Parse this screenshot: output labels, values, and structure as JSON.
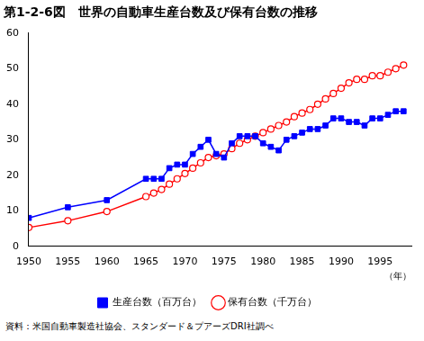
{
  "chart_data": {
    "type": "line",
    "title": "第1-2-6図　世界の自動車生産台数及び保有台数の推移",
    "xlabel": "（年）",
    "source": "資料：米国自動車製造社協会、スタンダード＆プアーズDRI社調べ",
    "x": [
      1950,
      1955,
      1960,
      1965,
      1966,
      1967,
      1968,
      1969,
      1970,
      1971,
      1972,
      1973,
      1974,
      1975,
      1976,
      1977,
      1978,
      1979,
      1980,
      1981,
      1982,
      1983,
      1984,
      1985,
      1986,
      1987,
      1988,
      1989,
      1990,
      1991,
      1992,
      1993,
      1994,
      1995,
      1996,
      1997,
      1998
    ],
    "series": [
      {
        "name": "生産台数（百万台）",
        "color": "#0000ff",
        "marker": "square",
        "values": [
          8,
          11,
          13,
          19,
          19,
          19,
          22,
          23,
          23,
          26,
          28,
          30,
          26,
          25,
          29,
          31,
          31,
          31,
          29,
          28,
          27,
          30,
          31,
          32,
          33,
          33,
          34,
          36,
          36,
          35,
          35,
          34,
          36,
          36,
          37,
          38,
          38
        ]
      },
      {
        "name": "保有台数（千万台）",
        "color": "#ff0000",
        "marker": "open_circle",
        "values": [
          5.3,
          7.2,
          9.8,
          14,
          15,
          16,
          17.5,
          19,
          20.5,
          22,
          23.5,
          25,
          25.5,
          26,
          27.5,
          29,
          30,
          31,
          32,
          33,
          34,
          35,
          36.5,
          37.5,
          38.5,
          40,
          41.5,
          43,
          44.5,
          46,
          47,
          47,
          48,
          48,
          49,
          50,
          51
        ]
      }
    ],
    "xlim": [
      1950,
      1999
    ],
    "xticks": [
      1950,
      1955,
      1960,
      1965,
      1970,
      1975,
      1980,
      1985,
      1990,
      1995
    ],
    "ylim": [
      0,
      60
    ],
    "yticks": [
      0,
      10,
      20,
      30,
      40,
      50,
      60
    ],
    "grid": false,
    "legend": "bottom"
  }
}
